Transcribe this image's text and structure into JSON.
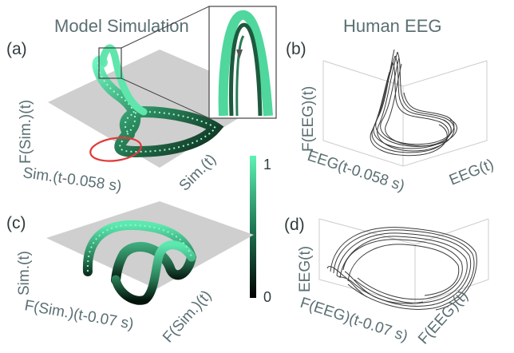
{
  "titles": {
    "left": "Model Simulation",
    "right": "Human EEG"
  },
  "panels": {
    "a": {
      "label": "(a)",
      "x_axis": "Sim.(t-0.058 s)",
      "y_axis": "Sim.(t)",
      "z_axis": "F(Sim.)(t)"
    },
    "b": {
      "label": "(b)",
      "x_axis": "EEG(t-0.058 s)",
      "y_axis": "EEG(t)",
      "z_axis": "F(EEG)(t)"
    },
    "c": {
      "label": "(c)",
      "x_axis": "F(Sim.)(t-0.07 s)",
      "y_axis": "F(Sim.)(t)",
      "z_axis": "Sim.(t)"
    },
    "d": {
      "label": "(d)",
      "x_axis": "F(EEG)(t-0.07 s)",
      "y_axis": "F(EEG)(t)",
      "z_axis": "EEG(t)"
    }
  },
  "colorbar": {
    "max_label": "1",
    "min_label": "0",
    "color_low": "#000000",
    "color_high": "#5ff2b4"
  },
  "colors": {
    "floor": "#cfcfcf",
    "text": "#5b6f73",
    "highlight_ellipse": "#e23a3a",
    "eeg_trace": "#3a3a3a"
  }
}
